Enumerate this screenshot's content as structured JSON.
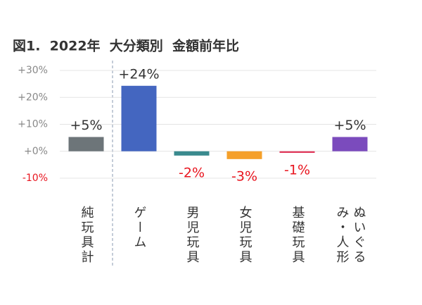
{
  "chart_data": {
    "type": "bar",
    "title": "図1.  2022年  大分類別  金額前年比",
    "categories": [
      "純玩具計",
      "ゲーム",
      "男児玩具",
      "女児玩具",
      "基礎玩具",
      "ぬいぐるみ・人形"
    ],
    "values": [
      5.3,
      24.3,
      -1.6,
      -2.9,
      -0.6,
      5.3
    ],
    "value_labels": [
      "+5%",
      "+24%",
      "-2%",
      "-3%",
      "-1%",
      "+5%"
    ],
    "colors": [
      "#6d7579",
      "#4466c0",
      "#3a8a8e",
      "#f5a02a",
      "#e0385a",
      "#7b4bbd"
    ],
    "negative_label_color": "#e8141e",
    "ylim": [
      -10,
      30
    ],
    "yticks": [
      {
        "value": -10,
        "label": "-10%"
      },
      {
        "value": 0,
        "label": "+0%"
      },
      {
        "value": 10,
        "label": "+10%"
      },
      {
        "value": 20,
        "label": "+20%"
      },
      {
        "value": 30,
        "label": "+30%"
      }
    ],
    "grid": true
  }
}
